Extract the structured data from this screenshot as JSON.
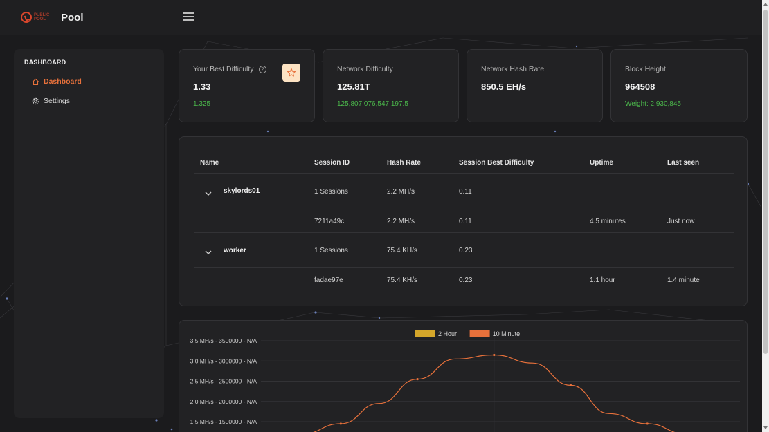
{
  "header": {
    "logo_text": "PUBLIC POOL",
    "title": "Pool"
  },
  "sidebar": {
    "section": "DASHBOARD",
    "items": [
      {
        "label": "Dashboard",
        "icon": "home-icon",
        "active": true
      },
      {
        "label": "Settings",
        "icon": "gear-icon",
        "active": false
      }
    ]
  },
  "cards": {
    "best_difficulty": {
      "label": "Your Best Difficulty",
      "value": "1.33",
      "sub": "1.325"
    },
    "network_difficulty": {
      "label": "Network Difficulty",
      "value": "125.81T",
      "sub": "125,807,076,547,197.5"
    },
    "network_hash_rate": {
      "label": "Network Hash Rate",
      "value": "850.5 EH/s"
    },
    "block_height": {
      "label": "Block Height",
      "value": "964508",
      "sub": "Weight: 2,930,845"
    }
  },
  "table": {
    "headers": [
      "Name",
      "Session ID",
      "Hash Rate",
      "Session Best Difficulty",
      "Uptime",
      "Last seen"
    ],
    "workers": [
      {
        "name": "skylords01",
        "sessions": "1 Sessions",
        "hash_rate": "2.2 MH/s",
        "best_difficulty": "0.11",
        "session": {
          "id": "7211a49c",
          "hash_rate": "2.2 MH/s",
          "best_difficulty": "0.11",
          "uptime": "4.5 minutes",
          "last_seen": "Just now"
        }
      },
      {
        "name": "worker",
        "sessions": "1 Sessions",
        "hash_rate": "75.4 KH/s",
        "best_difficulty": "0.23",
        "session": {
          "id": "fadae97e",
          "hash_rate": "75.4 KH/s",
          "best_difficulty": "0.23",
          "uptime": "1.1 hour",
          "last_seen": "1.4 minute"
        }
      }
    ]
  },
  "chart_data": {
    "type": "line",
    "legend_placement": "top-center",
    "series": [
      {
        "name": "2 Hour",
        "color": "#d4a62a",
        "values": []
      },
      {
        "name": "10 Minute",
        "color": "#e8713b",
        "points": [
          [
            0.0,
            1.2
          ],
          [
            0.2,
            1.45
          ],
          [
            0.4,
            1.95
          ],
          [
            0.6,
            2.55
          ],
          [
            0.8,
            3.05
          ],
          [
            1.0,
            3.15
          ],
          [
            1.2,
            2.95
          ],
          [
            1.4,
            2.4
          ],
          [
            1.6,
            1.7
          ],
          [
            1.8,
            1.45
          ],
          [
            2.0,
            1.2
          ]
        ]
      }
    ],
    "y_tick_labels": [
      "3.5 MH/s - 3500000 - N/A",
      "3.0 MH/s - 3000000 - N/A",
      "2.5 MH/s - 2500000 - N/A",
      "2.0 MH/s - 2000000 - N/A",
      "1.5 MH/s - 1500000 - N/A"
    ],
    "y_ticks": [
      3.5,
      3.0,
      2.5,
      2.0,
      1.5
    ],
    "ylim": [
      1.2,
      3.6
    ],
    "xlim": [
      0,
      2
    ],
    "grid": true
  },
  "colors": {
    "accent": "#e8713b",
    "positive": "#4bb84b",
    "card_bg": "#222224",
    "page_bg": "#1b1b1d"
  }
}
